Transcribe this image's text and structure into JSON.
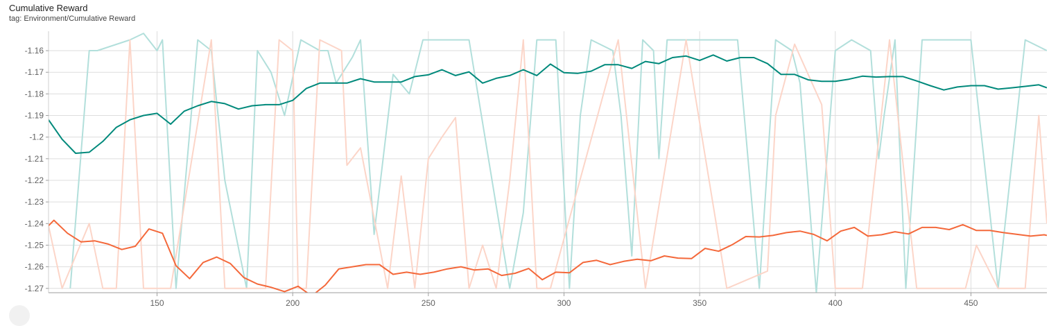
{
  "card": {
    "title": "Cumulative Reward",
    "subtitle": "tag: Environment/Cumulative Reward"
  },
  "chart_data": {
    "type": "line",
    "title": "Cumulative Reward",
    "xlabel": "",
    "ylabel": "",
    "xlim": [
      110,
      478
    ],
    "ylim": [
      -1.272,
      -1.151
    ],
    "grid": true,
    "x_ticks": [
      150,
      200,
      250,
      300,
      350,
      400,
      450
    ],
    "y_ticks": [
      -1.16,
      -1.17,
      -1.18,
      -1.19,
      -1.2,
      -1.21,
      -1.22,
      -1.23,
      -1.24,
      -1.25,
      -1.26,
      -1.27
    ],
    "x_tick_labels": [
      "150",
      "200",
      "250",
      "300",
      "350",
      "400",
      "450"
    ],
    "y_tick_labels": [
      "-1.16",
      "-1.17",
      "-1.18",
      "-1.19",
      "-1.2",
      "-1.21",
      "-1.22",
      "-1.23",
      "-1.24",
      "-1.25",
      "-1.26",
      "-1.27"
    ],
    "series": [
      {
        "color": "#00897b",
        "raw_color": "#b2dfdb",
        "smoothed": [
          [
            110,
            -1.192
          ],
          [
            115,
            -1.201
          ],
          [
            120,
            -1.2075
          ],
          [
            125,
            -1.207
          ],
          [
            130,
            -1.202
          ],
          [
            135,
            -1.1955
          ],
          [
            140,
            -1.192
          ],
          [
            145,
            -1.19
          ],
          [
            150,
            -1.189
          ],
          [
            155,
            -1.194
          ],
          [
            160,
            -1.188
          ],
          [
            165,
            -1.1855
          ],
          [
            170,
            -1.1835
          ],
          [
            175,
            -1.1845
          ],
          [
            180,
            -1.187
          ],
          [
            185,
            -1.1855
          ],
          [
            190,
            -1.185
          ],
          [
            195,
            -1.185
          ],
          [
            200,
            -1.183
          ],
          [
            205,
            -1.1775
          ],
          [
            210,
            -1.175
          ],
          [
            215,
            -1.175
          ],
          [
            220,
            -1.175
          ],
          [
            225,
            -1.173
          ],
          [
            230,
            -1.1745
          ],
          [
            235,
            -1.1745
          ],
          [
            240,
            -1.1745
          ],
          [
            245,
            -1.172
          ],
          [
            250,
            -1.1712
          ],
          [
            255,
            -1.1688
          ],
          [
            260,
            -1.1715
          ],
          [
            265,
            -1.1698
          ],
          [
            270,
            -1.175
          ],
          [
            275,
            -1.1728
          ],
          [
            280,
            -1.1715
          ],
          [
            285,
            -1.1688
          ],
          [
            290,
            -1.1715
          ],
          [
            295,
            -1.1662
          ],
          [
            300,
            -1.1702
          ],
          [
            305,
            -1.1705
          ],
          [
            310,
            -1.1695
          ],
          [
            315,
            -1.1665
          ],
          [
            320,
            -1.1665
          ],
          [
            325,
            -1.1682
          ],
          [
            330,
            -1.165
          ],
          [
            335,
            -1.166
          ],
          [
            340,
            -1.1632
          ],
          [
            345,
            -1.1625
          ],
          [
            350,
            -1.1645
          ],
          [
            355,
            -1.162
          ],
          [
            360,
            -1.1648
          ],
          [
            365,
            -1.1632
          ],
          [
            370,
            -1.1632
          ],
          [
            375,
            -1.166
          ],
          [
            380,
            -1.171
          ],
          [
            385,
            -1.171
          ],
          [
            390,
            -1.1735
          ],
          [
            395,
            -1.1742
          ],
          [
            400,
            -1.1742
          ],
          [
            405,
            -1.1732
          ],
          [
            410,
            -1.1718
          ],
          [
            415,
            -1.1722
          ],
          [
            420,
            -1.172
          ],
          [
            425,
            -1.172
          ],
          [
            430,
            -1.174
          ],
          [
            435,
            -1.1762
          ],
          [
            440,
            -1.1782
          ],
          [
            445,
            -1.1768
          ],
          [
            450,
            -1.1762
          ],
          [
            455,
            -1.1762
          ],
          [
            460,
            -1.1778
          ],
          [
            465,
            -1.1772
          ],
          [
            470,
            -1.1765
          ],
          [
            475,
            -1.1758
          ],
          [
            478,
            -1.1772
          ]
        ],
        "raw": [
          [
            118,
            -1.27
          ],
          [
            125,
            -1.16
          ],
          [
            128,
            -1.16
          ],
          [
            140,
            -1.155
          ],
          [
            145,
            -1.152
          ],
          [
            150,
            -1.16
          ],
          [
            152,
            -1.155
          ],
          [
            157,
            -1.27
          ],
          [
            165,
            -1.155
          ],
          [
            170,
            -1.16
          ],
          [
            175,
            -1.22
          ],
          [
            183,
            -1.27
          ],
          [
            187,
            -1.16
          ],
          [
            192,
            -1.17
          ],
          [
            197,
            -1.19
          ],
          [
            203,
            -1.155
          ],
          [
            210,
            -1.16
          ],
          [
            213,
            -1.16
          ],
          [
            216,
            -1.175
          ],
          [
            222,
            -1.163
          ],
          [
            225,
            -1.155
          ],
          [
            230,
            -1.245
          ],
          [
            237,
            -1.171
          ],
          [
            243,
            -1.18
          ],
          [
            248,
            -1.155
          ],
          [
            258,
            -1.155
          ],
          [
            265,
            -1.155
          ],
          [
            280,
            -1.27
          ],
          [
            285,
            -1.235
          ],
          [
            290,
            -1.155
          ],
          [
            297,
            -1.155
          ],
          [
            302,
            -1.27
          ],
          [
            306,
            -1.19
          ],
          [
            310,
            -1.155
          ],
          [
            318,
            -1.16
          ],
          [
            321,
            -1.19
          ],
          [
            325,
            -1.255
          ],
          [
            329,
            -1.155
          ],
          [
            333,
            -1.16
          ],
          [
            335,
            -1.21
          ],
          [
            338,
            -1.155
          ],
          [
            350,
            -1.155
          ],
          [
            364,
            -1.155
          ],
          [
            372,
            -1.27
          ],
          [
            378,
            -1.155
          ],
          [
            384,
            -1.16
          ],
          [
            387,
            -1.175
          ],
          [
            393,
            -1.272
          ],
          [
            400,
            -1.16
          ],
          [
            406,
            -1.155
          ],
          [
            413,
            -1.16
          ],
          [
            416,
            -1.21
          ],
          [
            418,
            -1.19
          ],
          [
            422,
            -1.155
          ],
          [
            426,
            -1.27
          ],
          [
            432,
            -1.155
          ],
          [
            445,
            -1.155
          ],
          [
            450,
            -1.155
          ],
          [
            460,
            -1.27
          ],
          [
            470,
            -1.155
          ],
          [
            478,
            -1.16
          ]
        ]
      },
      {
        "color": "#f4683a",
        "raw_color": "#fcd5c8",
        "smoothed": [
          [
            110,
            -1.241
          ],
          [
            112,
            -1.2385
          ],
          [
            117,
            -1.2445
          ],
          [
            122,
            -1.2485
          ],
          [
            127,
            -1.248
          ],
          [
            132,
            -1.2495
          ],
          [
            137,
            -1.252
          ],
          [
            142,
            -1.2505
          ],
          [
            147,
            -1.2425
          ],
          [
            152,
            -1.2445
          ],
          [
            157,
            -1.2595
          ],
          [
            162,
            -1.2655
          ],
          [
            167,
            -1.258
          ],
          [
            172,
            -1.2555
          ],
          [
            177,
            -1.2585
          ],
          [
            182,
            -1.265
          ],
          [
            187,
            -1.268
          ],
          [
            192,
            -1.2695
          ],
          [
            197,
            -1.2715
          ],
          [
            202,
            -1.269
          ],
          [
            207,
            -1.2735
          ],
          [
            212,
            -1.2685
          ],
          [
            217,
            -1.261
          ],
          [
            222,
            -1.26
          ],
          [
            227,
            -1.259
          ],
          [
            232,
            -1.259
          ],
          [
            237,
            -1.2635
          ],
          [
            242,
            -1.2625
          ],
          [
            247,
            -1.2635
          ],
          [
            252,
            -1.2625
          ],
          [
            257,
            -1.261
          ],
          [
            262,
            -1.26
          ],
          [
            267,
            -1.2615
          ],
          [
            272,
            -1.261
          ],
          [
            277,
            -1.264
          ],
          [
            282,
            -1.263
          ],
          [
            287,
            -1.2608
          ],
          [
            292,
            -1.266
          ],
          [
            297,
            -1.2625
          ],
          [
            302,
            -1.2628
          ],
          [
            307,
            -1.258
          ],
          [
            312,
            -1.257
          ],
          [
            317,
            -1.259
          ],
          [
            322,
            -1.2575
          ],
          [
            327,
            -1.2565
          ],
          [
            332,
            -1.2572
          ],
          [
            337,
            -1.255
          ],
          [
            342,
            -1.256
          ],
          [
            347,
            -1.2562
          ],
          [
            352,
            -1.2515
          ],
          [
            357,
            -1.2528
          ],
          [
            362,
            -1.2498
          ],
          [
            367,
            -1.246
          ],
          [
            372,
            -1.2462
          ],
          [
            377,
            -1.2455
          ],
          [
            382,
            -1.2442
          ],
          [
            387,
            -1.2435
          ],
          [
            392,
            -1.245
          ],
          [
            397,
            -1.248
          ],
          [
            402,
            -1.2435
          ],
          [
            407,
            -1.2418
          ],
          [
            412,
            -1.2458
          ],
          [
            417,
            -1.2452
          ],
          [
            422,
            -1.2438
          ],
          [
            427,
            -1.2448
          ],
          [
            432,
            -1.2418
          ],
          [
            437,
            -1.2418
          ],
          [
            442,
            -1.2428
          ],
          [
            447,
            -1.2405
          ],
          [
            452,
            -1.2432
          ],
          [
            457,
            -1.2432
          ],
          [
            462,
            -1.2442
          ],
          [
            467,
            -1.245
          ],
          [
            472,
            -1.2458
          ],
          [
            477,
            -1.2452
          ],
          [
            478,
            -1.2455
          ]
        ],
        "raw": [
          [
            110,
            -1.241
          ],
          [
            115,
            -1.27
          ],
          [
            125,
            -1.24
          ],
          [
            130,
            -1.27
          ],
          [
            135,
            -1.27
          ],
          [
            140,
            -1.155
          ],
          [
            145,
            -1.27
          ],
          [
            155,
            -1.27
          ],
          [
            170,
            -1.155
          ],
          [
            175,
            -1.27
          ],
          [
            180,
            -1.27
          ],
          [
            190,
            -1.27
          ],
          [
            195,
            -1.155
          ],
          [
            200,
            -1.16
          ],
          [
            202,
            -1.27
          ],
          [
            205,
            -1.27
          ],
          [
            210,
            -1.155
          ],
          [
            218,
            -1.16
          ],
          [
            220,
            -1.213
          ],
          [
            225,
            -1.205
          ],
          [
            235,
            -1.27
          ],
          [
            240,
            -1.218
          ],
          [
            245,
            -1.27
          ],
          [
            250,
            -1.21
          ],
          [
            255,
            -1.2
          ],
          [
            260,
            -1.191
          ],
          [
            265,
            -1.27
          ],
          [
            270,
            -1.25
          ],
          [
            275,
            -1.27
          ],
          [
            280,
            -1.22
          ],
          [
            285,
            -1.155
          ],
          [
            290,
            -1.27
          ],
          [
            295,
            -1.27
          ],
          [
            320,
            -1.155
          ],
          [
            330,
            -1.27
          ],
          [
            345,
            -1.155
          ],
          [
            360,
            -1.27
          ],
          [
            375,
            -1.262
          ],
          [
            378,
            -1.19
          ],
          [
            385,
            -1.157
          ],
          [
            395,
            -1.185
          ],
          [
            400,
            -1.27
          ],
          [
            410,
            -1.27
          ],
          [
            420,
            -1.155
          ],
          [
            430,
            -1.27
          ],
          [
            440,
            -1.27
          ],
          [
            448,
            -1.27
          ],
          [
            452,
            -1.25
          ],
          [
            460,
            -1.27
          ],
          [
            470,
            -1.27
          ],
          [
            475,
            -1.19
          ],
          [
            478,
            -1.24
          ]
        ]
      }
    ]
  }
}
